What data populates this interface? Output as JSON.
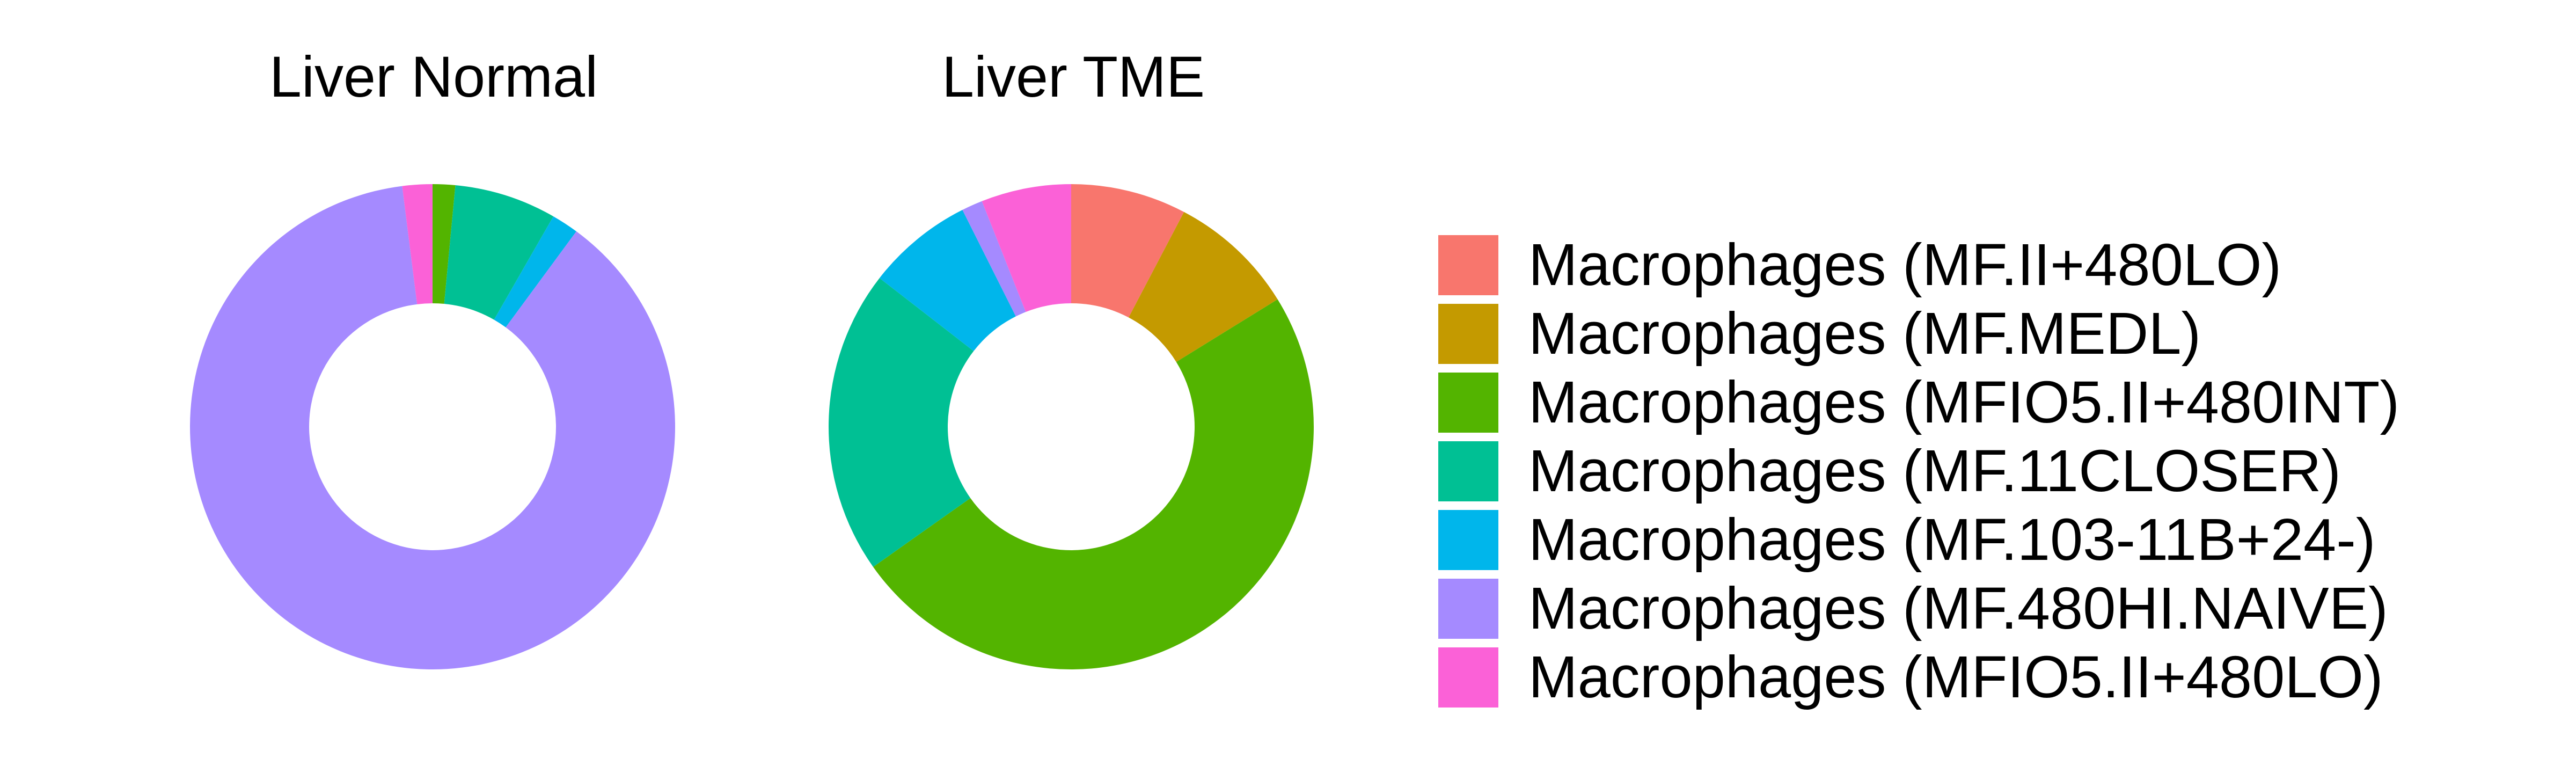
{
  "chart_data": {
    "type": "pie",
    "style": "donut",
    "categories": [
      "Macrophages (MF.II+480LO)",
      "Macrophages (MF.MEDL)",
      "Macrophages (MFIO5.II+480INT)",
      "Macrophages (MF.11CLOSER)",
      "Macrophages (MF.103-11B+24-)",
      "Macrophages (MF.480HI.NAIVE)",
      "Macrophages (MFIO5.II+480LO)"
    ],
    "colors": [
      "#F8766D",
      "#C49A00",
      "#53B400",
      "#00C094",
      "#00B6EB",
      "#A58AFF",
      "#FB61D7"
    ],
    "series": [
      {
        "name": "Liver Normal",
        "values": [
          0.0,
          0.0,
          1.5,
          6.8,
          1.8,
          87.9,
          2.0
        ]
      },
      {
        "name": "Liver TME",
        "values": [
          7.7,
          8.5,
          49.0,
          20.3,
          7.1,
          1.4,
          6.0
        ]
      }
    ],
    "legend_position": "right",
    "start_angle": "12 o'clock",
    "direction": "clockwise"
  }
}
